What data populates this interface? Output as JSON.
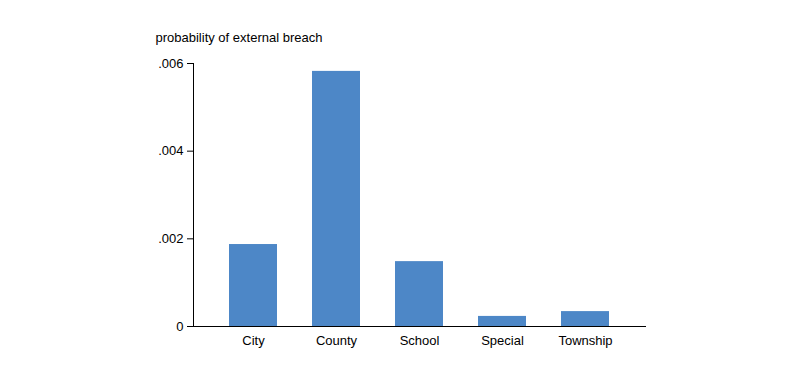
{
  "chart_data": {
    "type": "bar",
    "y_label": "probability of external breach",
    "categories": [
      "City",
      "County",
      "School",
      "Special",
      "Township"
    ],
    "values": [
      0.00187,
      0.00582,
      0.00148,
      0.00023,
      0.00034
    ],
    "color": "#4d87c7",
    "ylim": [
      0,
      0.006
    ],
    "yticks": [
      0,
      {
        "value": 0.002,
        "label": ".002"
      },
      {
        "value": 0.004,
        "label": ".004"
      },
      {
        "value": 0.006,
        "label": ".006"
      }
    ],
    "grid": false
  }
}
